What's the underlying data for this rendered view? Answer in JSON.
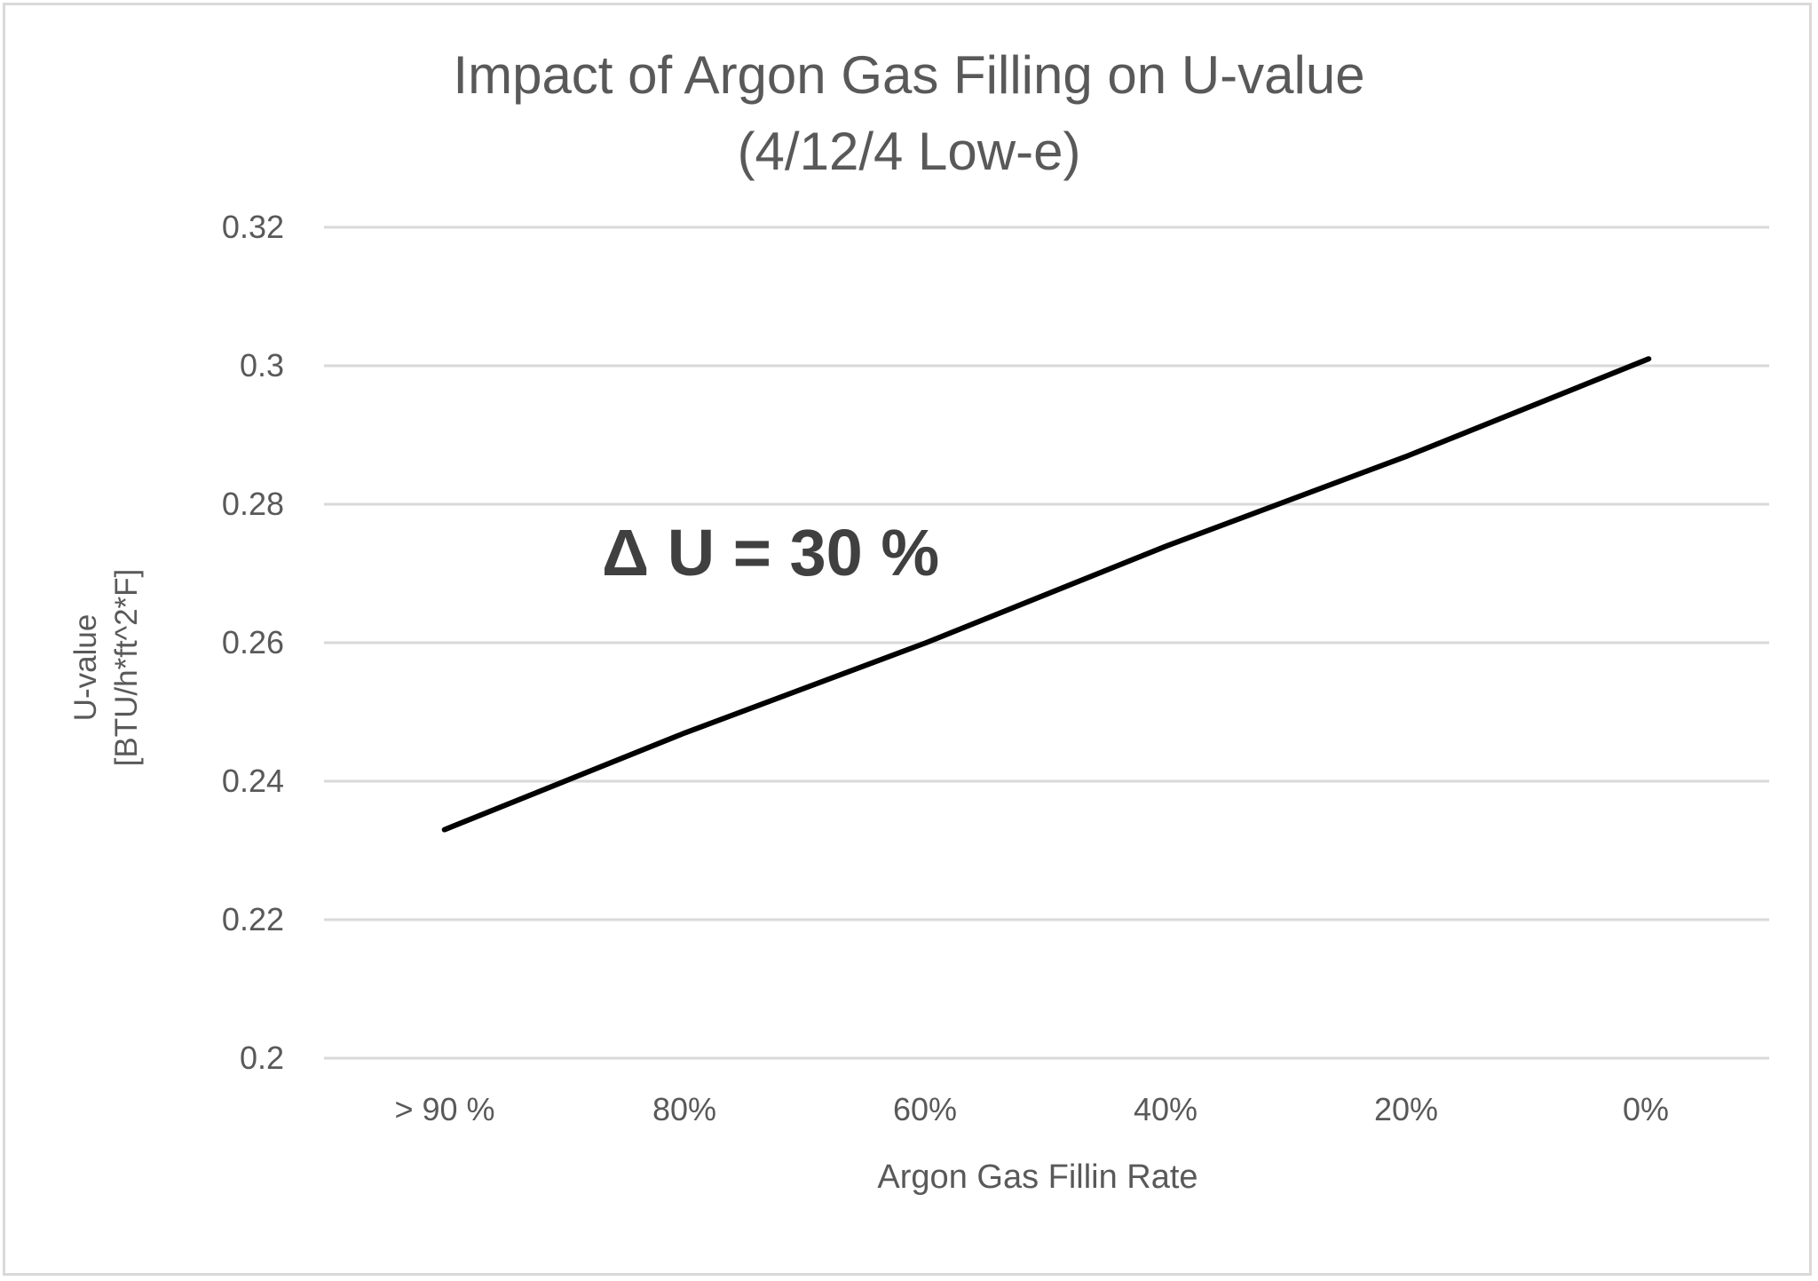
{
  "chart_data": {
    "type": "line",
    "title": "Impact of Argon Gas Filling on U-value",
    "subtitle": "(4/12/4 Low-e)",
    "xlabel": "Argon Gas Fillin Rate",
    "ylabel": "U-value",
    "ylabel_units": "[BTU/h*ft^2*F]",
    "categories": [
      "> 90 %",
      "80%",
      "60%",
      "40%",
      "20%",
      "0%"
    ],
    "series": [
      {
        "name": "U-value",
        "color": "#000000",
        "values": [
          0.233,
          0.247,
          0.26,
          0.274,
          0.287,
          0.301
        ]
      }
    ],
    "yticks": [
      "0.32",
      "0.3",
      "0.28",
      "0.26",
      "0.24",
      "0.22",
      "0.2"
    ],
    "ylim": [
      0.2,
      0.32
    ],
    "grid": true,
    "legend": "none",
    "annotations": [
      {
        "text": "Δ U = 30 %"
      }
    ]
  },
  "title": {
    "line1": "Impact of Argon Gas Filling on U-value",
    "line2": "(4/12/4 Low-e)"
  },
  "axes": {
    "y_label_line1": "U-value",
    "y_label_line2": "[BTU/h*ft^2*F]",
    "x_label": "Argon Gas Fillin Rate",
    "yticks": [
      "0.32",
      "0.3",
      "0.28",
      "0.26",
      "0.24",
      "0.22",
      "0.2"
    ],
    "xticks": [
      "> 90 %",
      "80%",
      "60%",
      "40%",
      "20%",
      "0%"
    ]
  },
  "annotation": {
    "text": "Δ U = 30 %"
  },
  "colors": {
    "text": "#595959",
    "grid": "#d9d9d9",
    "line": "#000000",
    "annotation": "#404040"
  }
}
